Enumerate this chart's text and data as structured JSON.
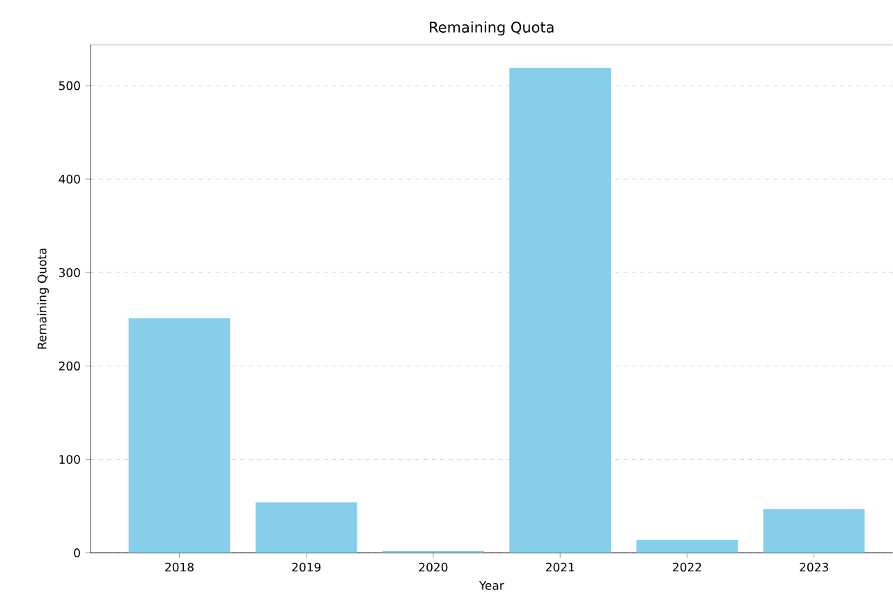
{
  "chart_data": {
    "type": "bar",
    "title": "Remaining Quota",
    "xlabel": "Year",
    "ylabel": "Remaining Quota",
    "categories": [
      "2018",
      "2019",
      "2020",
      "2021",
      "2022",
      "2023"
    ],
    "values": [
      251,
      54,
      2,
      519,
      14,
      47
    ],
    "color": "#87ceeb",
    "ylim": [
      0,
      544
    ],
    "yticks": [
      0,
      100,
      200,
      300,
      400,
      500
    ],
    "grid": "y"
  }
}
